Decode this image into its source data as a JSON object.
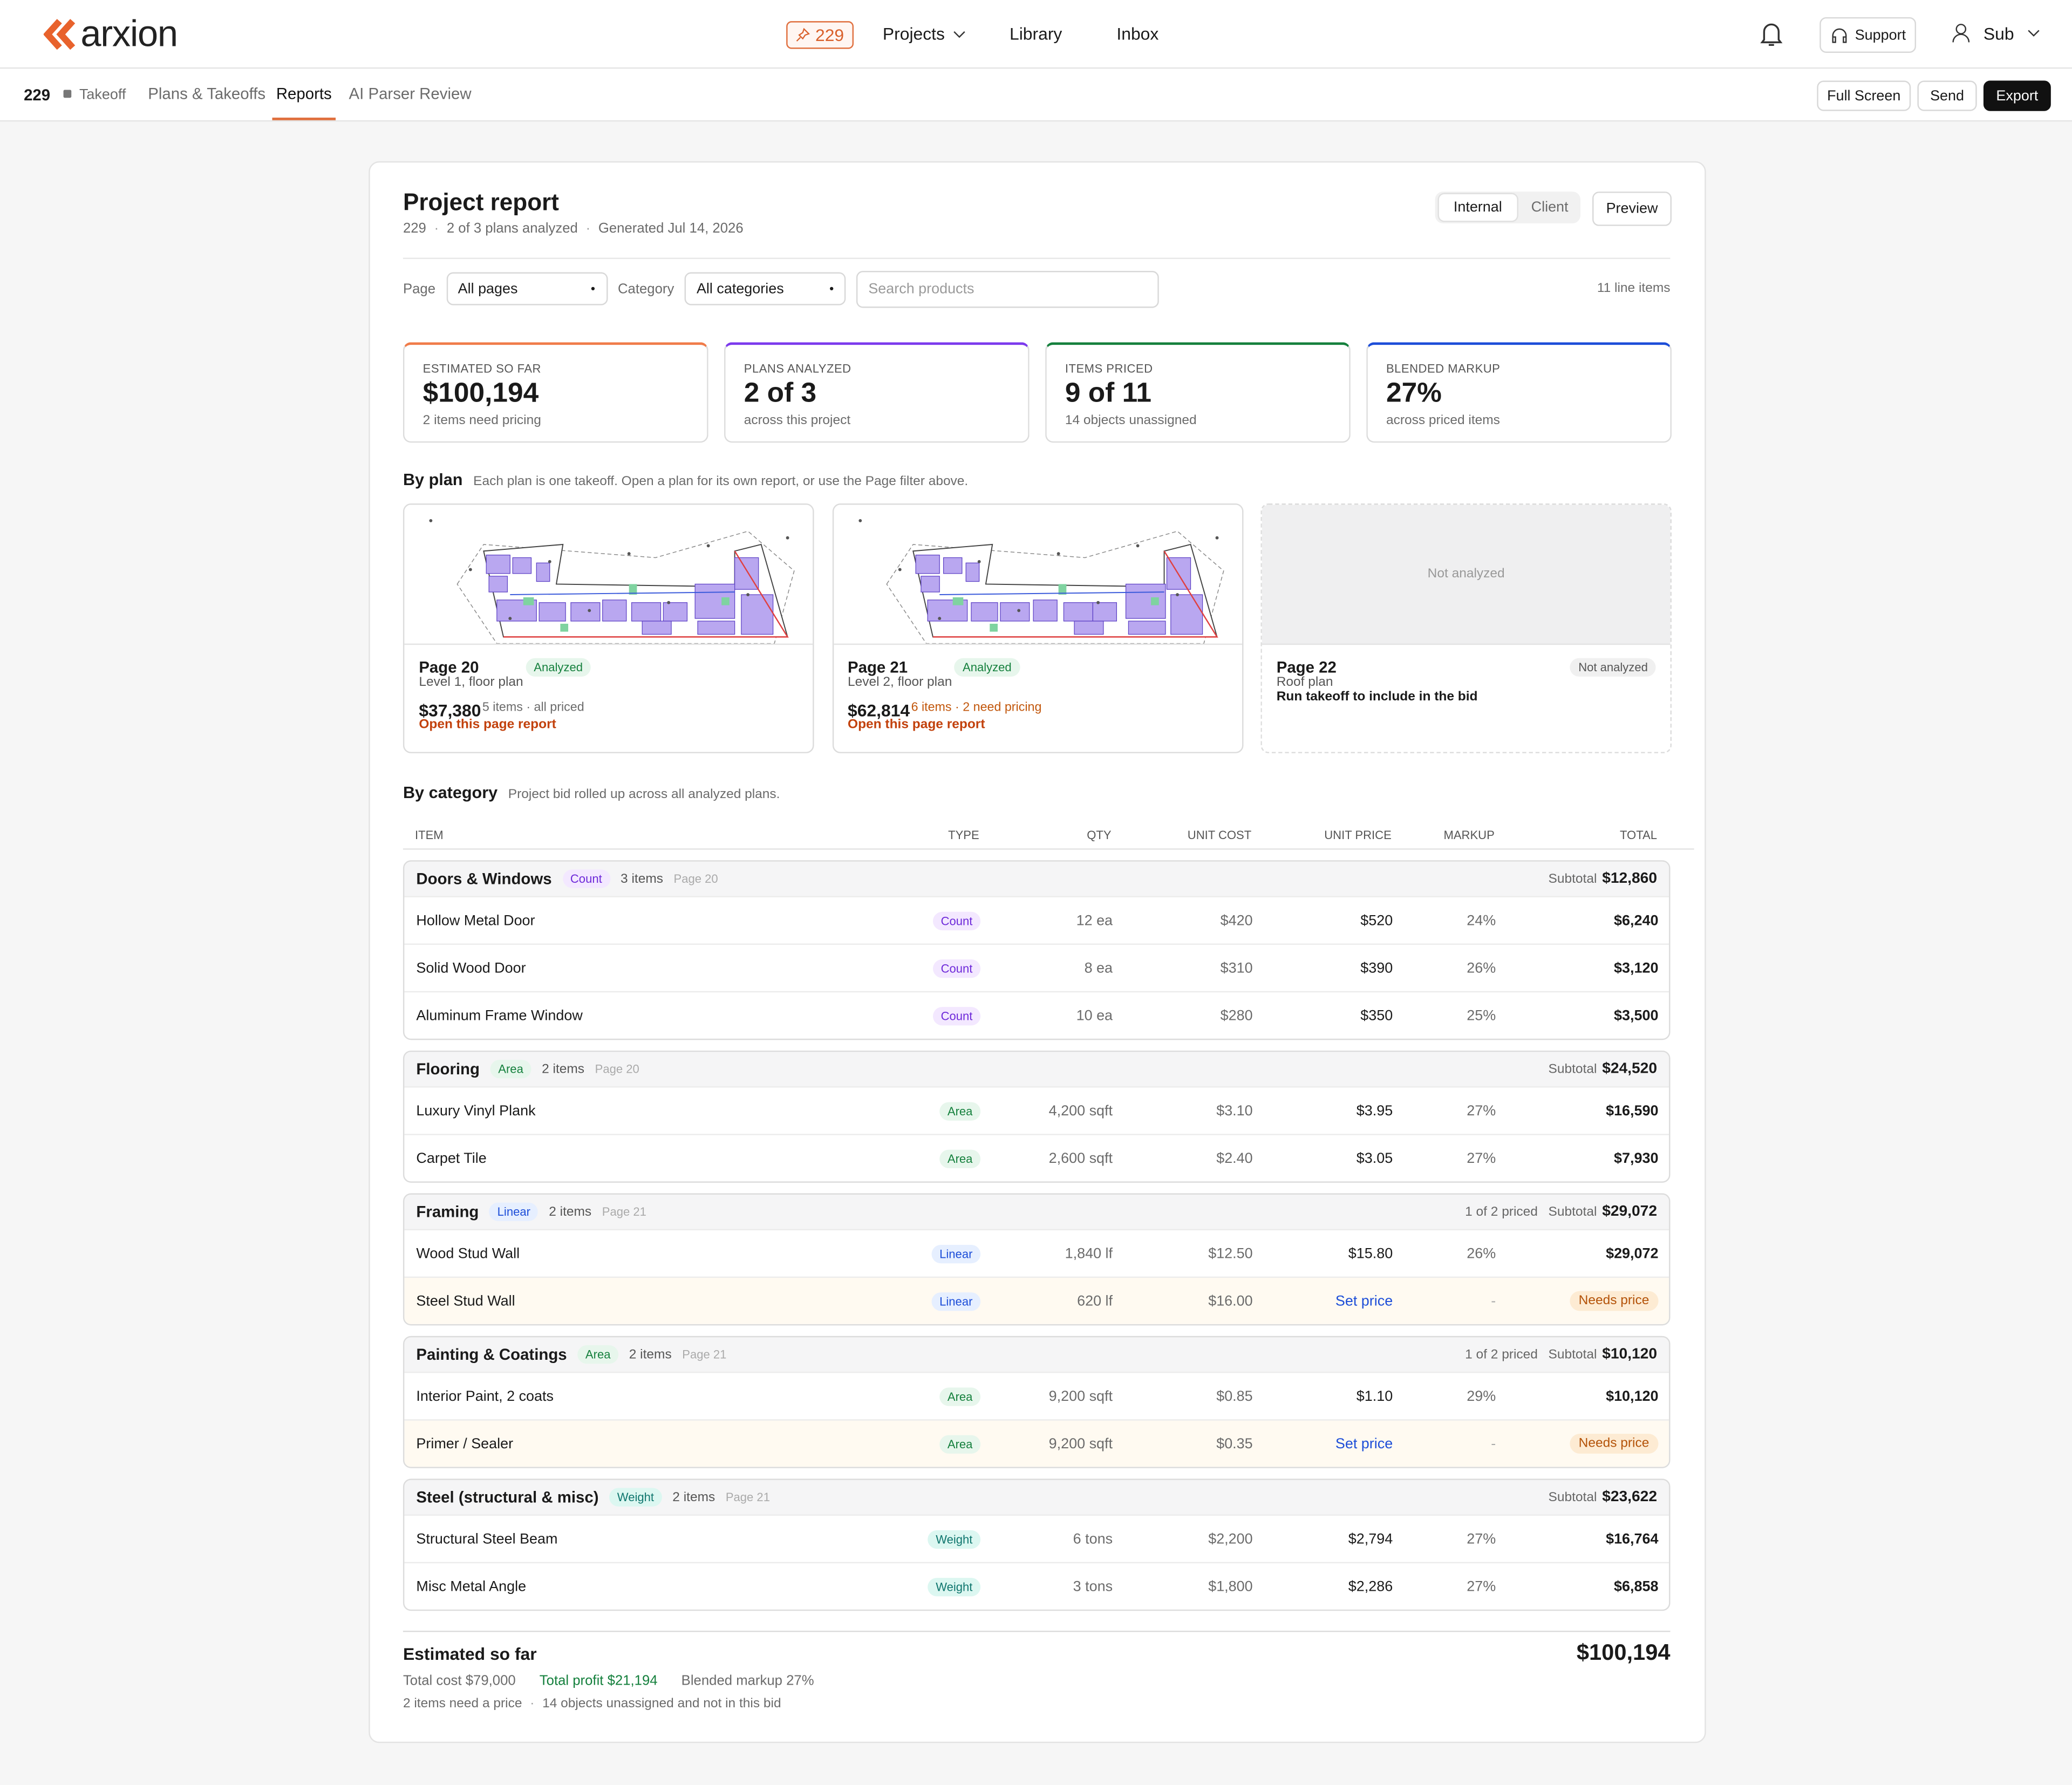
{
  "header": {
    "logo": "arxion",
    "project_badge": "229",
    "nav": [
      "Projects",
      "Library",
      "Inbox"
    ],
    "support": "Support",
    "user": "Sub"
  },
  "subnav": {
    "project": "229",
    "status": "Takeoff",
    "tabs": [
      "Plans & Takeoffs",
      "Reports",
      "AI Parser Review"
    ],
    "actions": [
      "Full Screen",
      "Send",
      "Export"
    ]
  },
  "report": {
    "title": "Project report",
    "meta": [
      "229",
      "2 of 3 plans analyzed",
      "Generated Jul 14, 2026"
    ],
    "view_toggle": [
      "Internal",
      "Client"
    ],
    "preview": "Preview",
    "filters": {
      "page_label": "Page",
      "page_value": "All pages",
      "category_label": "Category",
      "category_value": "All categories",
      "search_placeholder": "Search products",
      "count": "11 line items"
    },
    "kpis": [
      {
        "label": "ESTIMATED SO FAR",
        "value": "$100,194",
        "note": "2 items need pricing",
        "color": "#f07c4a"
      },
      {
        "label": "PLANS ANALYZED",
        "value": "2 of 3",
        "note": "across this project",
        "color": "#7c3aed"
      },
      {
        "label": "ITEMS PRICED",
        "value": "9 of 11",
        "note": "14 objects unassigned",
        "color": "#15803d"
      },
      {
        "label": "BLENDED MARKUP",
        "value": "27%",
        "note": "across priced items",
        "color": "#1d4ed8"
      }
    ],
    "by_plan": {
      "title": "By plan",
      "subtitle": "Each plan is one takeoff. Open a plan for its own report, or use the Page filter above.",
      "plans": [
        {
          "page": "Page 20",
          "status": "Analyzed",
          "analyzed": true,
          "desc": "Level 1, floor plan",
          "total": "$37,380",
          "summary": "5 items · all priced",
          "summary_color": "#6b6b6b",
          "link": "Open this page report"
        },
        {
          "page": "Page 21",
          "status": "Analyzed",
          "analyzed": true,
          "desc": "Level 2, floor plan",
          "total": "$62,814",
          "summary": "6 items · 2 need pricing",
          "summary_color": "#c2570c",
          "link": "Open this page report"
        },
        {
          "page": "Page 22",
          "status": "Not analyzed",
          "analyzed": false,
          "placeholder": "Not analyzed",
          "desc": "Roof plan",
          "note": "Run takeoff to include in the bid"
        }
      ]
    },
    "by_category": {
      "title": "By category",
      "subtitle": "Project bid rolled up across all analyzed plans.",
      "columns": [
        "ITEM",
        "TYPE",
        "QTY",
        "UNIT COST",
        "UNIT PRICE",
        "MARKUP",
        "TOTAL"
      ],
      "subtotal_label": "Subtotal",
      "type_styles": {
        "Count": {
          "fg": "#6d28d9",
          "bg": "#f3e8ff"
        },
        "Area": {
          "fg": "#15803d",
          "bg": "#e7f6ec"
        },
        "Linear": {
          "fg": "#1d4ed8",
          "bg": "#e6efff"
        },
        "Weight": {
          "fg": "#0f766e",
          "bg": "#dcf7f1"
        }
      },
      "groups": [
        {
          "name": "Doors & Windows",
          "type": "Count",
          "count": "3 items",
          "page": "Page 20",
          "subtotal": "$12,860",
          "rows": [
            {
              "cells": [
                "Hollow Metal Door",
                "Count",
                "12 ea",
                "$420",
                "$520",
                "24%",
                "$6,240"
              ]
            },
            {
              "cells": [
                "Solid Wood Door",
                "Count",
                "8 ea",
                "$310",
                "$390",
                "26%",
                "$3,120"
              ]
            },
            {
              "cells": [
                "Aluminum Frame Window",
                "Count",
                "10 ea",
                "$280",
                "$350",
                "25%",
                "$3,500"
              ]
            }
          ]
        },
        {
          "name": "Flooring",
          "type": "Area",
          "count": "2 items",
          "page": "Page 20",
          "subtotal": "$24,520",
          "rows": [
            {
              "cells": [
                "Luxury Vinyl Plank",
                "Area",
                "4,200 sqft",
                "$3.10",
                "$3.95",
                "27%",
                "$16,590"
              ]
            },
            {
              "cells": [
                "Carpet Tile",
                "Area",
                "2,600 sqft",
                "$2.40",
                "$3.05",
                "27%",
                "$7,930"
              ]
            }
          ]
        },
        {
          "name": "Framing",
          "type": "Linear",
          "count": "2 items",
          "page": "Page 21",
          "priced": "1 of 2 priced",
          "subtotal": "$29,072",
          "rows": [
            {
              "cells": [
                "Wood Stud Wall",
                "Linear",
                "1,840 lf",
                "$12.50",
                "$15.80",
                "26%",
                "$29,072"
              ]
            },
            {
              "cells": [
                "Steel Stud Wall",
                "Linear",
                "620 lf",
                "$16.00",
                "Set price",
                "-",
                "Needs price"
              ],
              "pending": true
            }
          ]
        },
        {
          "name": "Painting & Coatings",
          "type": "Area",
          "count": "2 items",
          "page": "Page 21",
          "priced": "1 of 2 priced",
          "subtotal": "$10,120",
          "rows": [
            {
              "cells": [
                "Interior Paint, 2 coats",
                "Area",
                "9,200 sqft",
                "$0.85",
                "$1.10",
                "29%",
                "$10,120"
              ]
            },
            {
              "cells": [
                "Primer / Sealer",
                "Area",
                "9,200 sqft",
                "$0.35",
                "Set price",
                "-",
                "Needs price"
              ],
              "pending": true
            }
          ]
        },
        {
          "name": "Steel (structural & misc)",
          "type": "Weight",
          "count": "2 items",
          "page": "Page 21",
          "subtotal": "$23,622",
          "rows": [
            {
              "cells": [
                "Structural Steel Beam",
                "Weight",
                "6 tons",
                "$2,200",
                "$2,794",
                "27%",
                "$16,764"
              ]
            },
            {
              "cells": [
                "Misc Metal Angle",
                "Weight",
                "3 tons",
                "$1,800",
                "$2,286",
                "27%",
                "$6,858"
              ]
            }
          ]
        }
      ]
    },
    "footer": {
      "title": "Estimated so far",
      "total": "$100,194",
      "cost_label": "Total cost",
      "cost": "$79,000",
      "profit_label": "Total profit",
      "profit": "$21,194",
      "markup_label": "Blended markup",
      "markup": "27%",
      "notes": [
        "2 items need a price",
        "14 objects unassigned and not in this bid"
      ]
    }
  }
}
